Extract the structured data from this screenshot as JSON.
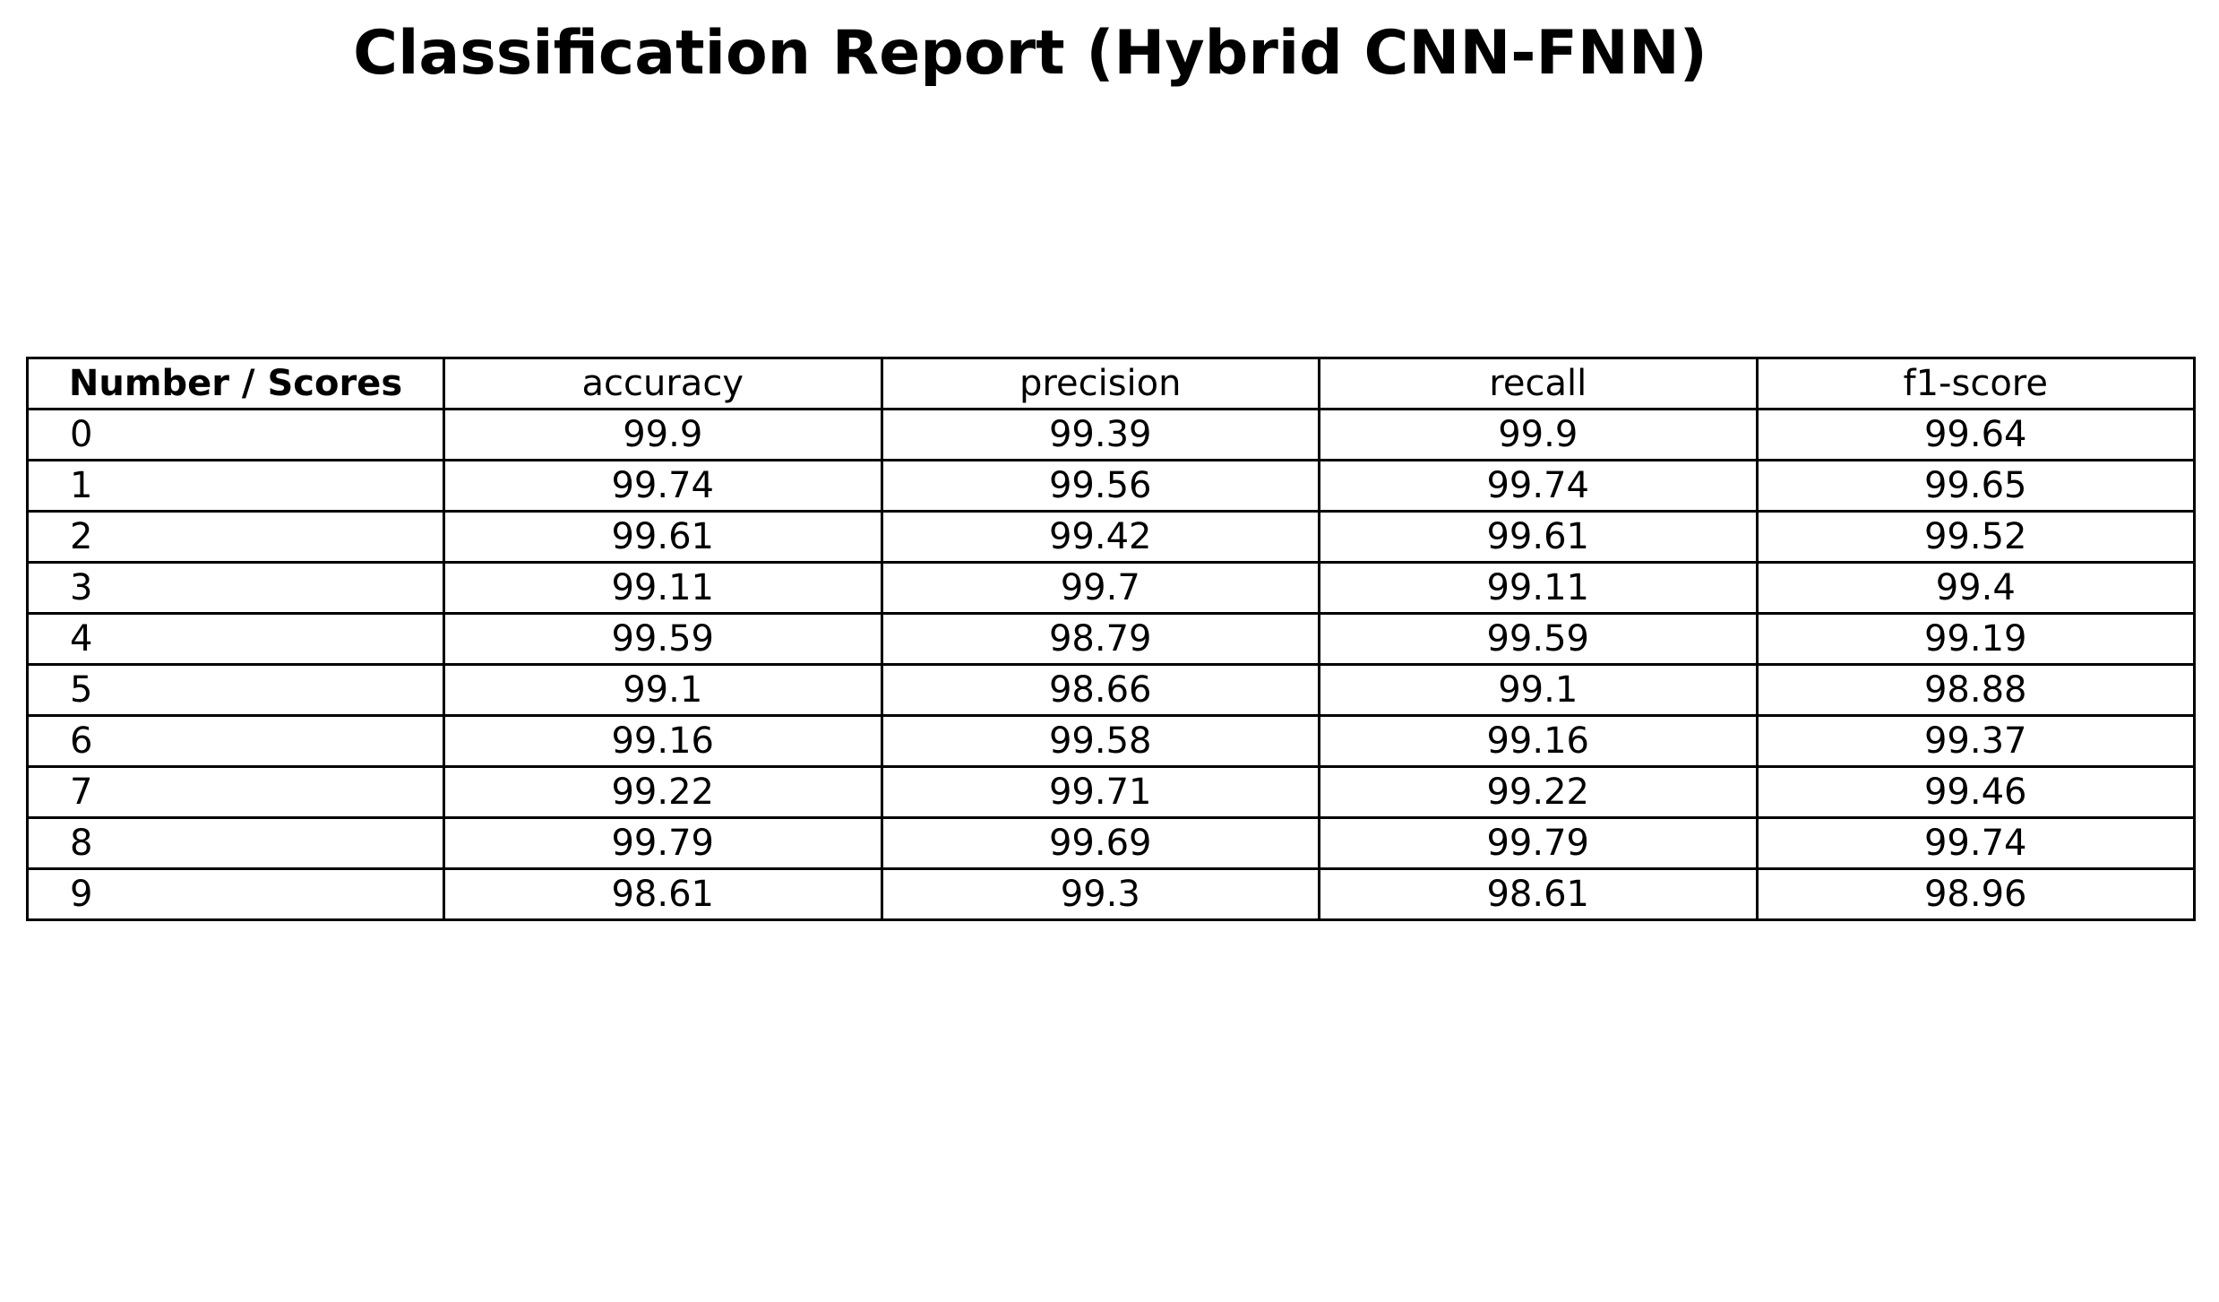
{
  "chart_data": {
    "type": "table",
    "title": "Classification Report (Hybrid CNN-FNN)",
    "corner_label": "Number / Scores",
    "columns": [
      "accuracy",
      "precision",
      "recall",
      "f1-score"
    ],
    "rows": [
      {
        "label": "0",
        "values": [
          "99.9",
          "99.39",
          "99.9",
          "99.64"
        ]
      },
      {
        "label": "1",
        "values": [
          "99.74",
          "99.56",
          "99.74",
          "99.65"
        ]
      },
      {
        "label": "2",
        "values": [
          "99.61",
          "99.42",
          "99.61",
          "99.52"
        ]
      },
      {
        "label": "3",
        "values": [
          "99.11",
          "99.7",
          "99.11",
          "99.4"
        ]
      },
      {
        "label": "4",
        "values": [
          "99.59",
          "98.79",
          "99.59",
          "99.19"
        ]
      },
      {
        "label": "5",
        "values": [
          "99.1",
          "98.66",
          "99.1",
          "98.88"
        ]
      },
      {
        "label": "6",
        "values": [
          "99.16",
          "99.58",
          "99.16",
          "99.37"
        ]
      },
      {
        "label": "7",
        "values": [
          "99.22",
          "99.71",
          "99.22",
          "99.46"
        ]
      },
      {
        "label": "8",
        "values": [
          "99.79",
          "99.69",
          "99.79",
          "99.74"
        ]
      },
      {
        "label": "9",
        "values": [
          "98.61",
          "99.3",
          "98.61",
          "98.96"
        ]
      }
    ]
  }
}
